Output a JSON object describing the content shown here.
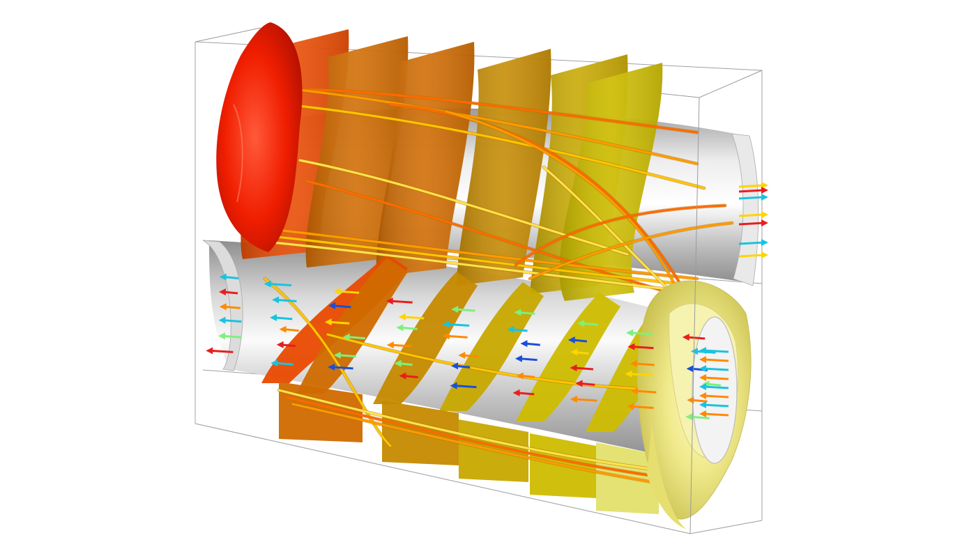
{
  "scene": {
    "description_free": true,
    "colors": {
      "background": "#ffffff",
      "box_edge": "#9a9a9a",
      "pipe_light": "#f4f4f4",
      "pipe_mid": "#bdbdbd",
      "pipe_dark": "#8c8c8c",
      "isosurface_ramp": [
        "#ff2a00",
        "#e84a00",
        "#d06a00",
        "#c58a00",
        "#c7a800",
        "#cdbd00",
        "#e2e06a"
      ],
      "streamline": [
        "#ff6a00",
        "#ff9a00",
        "#ffc400",
        "#ffe24a"
      ],
      "arrow_palette": [
        "#1a4fd6",
        "#19c3e0",
        "#7df07d",
        "#ffd400",
        "#ff8a00",
        "#e81e1e"
      ]
    },
    "icons": [
      "arrow-glyph",
      "streamline-tube"
    ]
  }
}
